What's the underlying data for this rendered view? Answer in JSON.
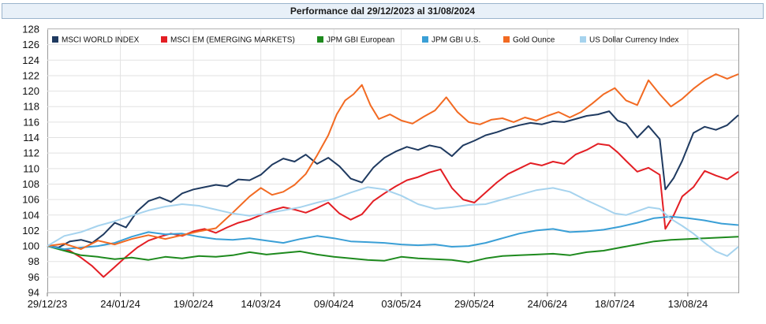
{
  "chart_data": {
    "type": "line",
    "title": "Performance dal 29/12/2023 al 31/08/2024",
    "ylim": [
      94,
      128
    ],
    "y_ticks": [
      94,
      96,
      98,
      100,
      102,
      104,
      106,
      108,
      110,
      112,
      114,
      116,
      118,
      120,
      122,
      124,
      126,
      128
    ],
    "x_tick_labels": [
      "29/12/23",
      "24/01/24",
      "19/02/24",
      "14/03/24",
      "09/04/24",
      "03/05/24",
      "29/05/24",
      "24/06/24",
      "18/07/24",
      "13/08/24"
    ],
    "x_range_days": [
      0,
      246
    ],
    "x_tick_days": [
      0,
      26,
      52,
      76,
      102,
      126,
      152,
      178,
      202,
      228
    ],
    "series": [
      {
        "name": "MSCI WORLD INDEX",
        "color": "#1f3a60",
        "x": [
          0,
          4,
          8,
          12,
          16,
          20,
          24,
          28,
          32,
          36,
          40,
          44,
          48,
          52,
          56,
          60,
          64,
          68,
          72,
          76,
          80,
          84,
          88,
          92,
          96,
          100,
          104,
          108,
          112,
          116,
          120,
          124,
          128,
          132,
          136,
          140,
          144,
          148,
          152,
          156,
          160,
          164,
          168,
          172,
          176,
          180,
          184,
          188,
          192,
          196,
          200,
          203,
          206,
          210,
          214,
          218,
          220,
          223,
          226,
          230,
          234,
          238,
          242,
          246
        ],
        "values": [
          100,
          99.8,
          100.6,
          100.8,
          100.4,
          101.5,
          103.0,
          102.4,
          104.5,
          105.8,
          106.3,
          105.7,
          106.8,
          107.3,
          107.6,
          107.9,
          107.7,
          108.6,
          108.5,
          109.2,
          110.5,
          111.3,
          110.9,
          111.8,
          110.6,
          111.4,
          110.3,
          108.7,
          108.2,
          110.1,
          111.4,
          112.2,
          112.8,
          112.4,
          113.0,
          112.7,
          111.6,
          113.0,
          113.6,
          114.3,
          114.7,
          115.2,
          115.6,
          115.9,
          115.7,
          116.1,
          116.0,
          116.4,
          116.8,
          117.0,
          117.4,
          116.2,
          115.8,
          114.0,
          115.5,
          113.8,
          107.3,
          108.8,
          111.0,
          114.6,
          115.4,
          115.0,
          115.6,
          116.9
        ]
      },
      {
        "name": "MSCI EM (EMERGING MARKETS)",
        "color": "#e31e24",
        "x": [
          0,
          4,
          8,
          12,
          16,
          20,
          24,
          28,
          32,
          36,
          40,
          44,
          48,
          52,
          56,
          60,
          64,
          68,
          72,
          76,
          80,
          84,
          88,
          92,
          96,
          100,
          104,
          108,
          112,
          116,
          120,
          124,
          128,
          132,
          136,
          140,
          144,
          148,
          152,
          156,
          160,
          164,
          168,
          172,
          176,
          180,
          184,
          188,
          192,
          196,
          200,
          203,
          206,
          210,
          214,
          218,
          220,
          223,
          226,
          230,
          234,
          238,
          242,
          246
        ],
        "values": [
          100,
          99.7,
          99.4,
          98.5,
          97.4,
          96.0,
          97.3,
          98.6,
          99.8,
          100.7,
          101.2,
          101.6,
          101.3,
          101.9,
          102.2,
          101.7,
          102.4,
          103.0,
          103.4,
          104.0,
          104.6,
          105.0,
          104.7,
          104.3,
          104.9,
          105.6,
          104.2,
          103.4,
          104.1,
          105.8,
          106.8,
          107.7,
          108.5,
          108.9,
          109.5,
          109.9,
          107.5,
          106.0,
          105.6,
          106.9,
          108.2,
          109.3,
          110.0,
          110.7,
          110.4,
          110.9,
          110.6,
          111.8,
          112.4,
          113.2,
          113.0,
          112.1,
          111.0,
          109.6,
          110.1,
          109.2,
          102.2,
          104.0,
          106.4,
          107.6,
          109.7,
          109.1,
          108.6,
          109.6
        ]
      },
      {
        "name": "JPM GBI European",
        "color": "#1e8a1e",
        "x": [
          0,
          6,
          12,
          18,
          24,
          30,
          36,
          42,
          48,
          54,
          60,
          66,
          72,
          78,
          84,
          90,
          96,
          102,
          108,
          114,
          120,
          126,
          132,
          138,
          144,
          150,
          156,
          162,
          168,
          174,
          180,
          186,
          192,
          198,
          204,
          210,
          216,
          222,
          228,
          234,
          240,
          246
        ],
        "values": [
          100,
          99.4,
          98.8,
          98.6,
          98.3,
          98.5,
          98.2,
          98.6,
          98.4,
          98.7,
          98.6,
          98.8,
          99.2,
          98.9,
          99.1,
          99.3,
          98.9,
          98.6,
          98.4,
          98.2,
          98.1,
          98.6,
          98.4,
          98.3,
          98.2,
          97.9,
          98.4,
          98.7,
          98.8,
          98.9,
          99.0,
          98.8,
          99.2,
          99.4,
          99.8,
          100.2,
          100.6,
          100.8,
          100.9,
          101.0,
          101.1,
          101.2
        ]
      },
      {
        "name": "JPM GBI U.S.",
        "color": "#3a9fd6",
        "x": [
          0,
          6,
          12,
          18,
          24,
          30,
          36,
          42,
          48,
          54,
          60,
          66,
          72,
          78,
          84,
          90,
          96,
          102,
          108,
          114,
          120,
          126,
          132,
          138,
          144,
          150,
          156,
          162,
          168,
          174,
          180,
          186,
          192,
          198,
          204,
          210,
          216,
          222,
          228,
          234,
          240,
          246
        ],
        "values": [
          100,
          99.6,
          99.8,
          100.0,
          100.4,
          101.2,
          101.8,
          101.5,
          101.6,
          101.2,
          100.9,
          100.8,
          101.0,
          100.7,
          100.4,
          100.9,
          101.3,
          101.0,
          100.6,
          100.5,
          100.4,
          100.2,
          100.1,
          100.2,
          99.9,
          100.0,
          100.4,
          101.0,
          101.6,
          102.0,
          102.2,
          101.8,
          101.9,
          102.1,
          102.5,
          103.0,
          103.6,
          103.8,
          103.6,
          103.3,
          102.9,
          102.7
        ]
      },
      {
        "name": "Gold Ounce",
        "color": "#f26a22",
        "x": [
          0,
          6,
          12,
          18,
          24,
          30,
          36,
          42,
          48,
          54,
          60,
          66,
          72,
          76,
          80,
          84,
          88,
          92,
          96,
          100,
          103,
          106,
          109,
          112,
          115,
          118,
          122,
          126,
          130,
          134,
          138,
          142,
          146,
          150,
          154,
          158,
          162,
          166,
          170,
          174,
          178,
          182,
          186,
          190,
          194,
          198,
          202,
          206,
          210,
          214,
          218,
          222,
          226,
          230,
          234,
          238,
          242,
          246
        ],
        "values": [
          100,
          100.3,
          99.6,
          100.7,
          100.2,
          100.9,
          101.4,
          100.9,
          101.4,
          101.9,
          102.3,
          104.3,
          106.4,
          107.5,
          106.6,
          107.0,
          107.9,
          109.3,
          111.7,
          114.3,
          117.0,
          118.8,
          119.6,
          120.8,
          118.2,
          116.4,
          117.0,
          116.2,
          115.8,
          116.7,
          117.5,
          119.2,
          117.3,
          116.0,
          115.7,
          116.3,
          116.5,
          116.0,
          116.6,
          116.2,
          116.8,
          117.3,
          116.6,
          117.3,
          118.4,
          119.6,
          120.4,
          118.8,
          118.2,
          121.4,
          119.6,
          118.0,
          119.0,
          120.3,
          121.4,
          122.2,
          121.6,
          122.2
        ]
      },
      {
        "name": "US Dollar Currency Index",
        "color": "#a6d3ee",
        "x": [
          0,
          6,
          12,
          18,
          24,
          30,
          36,
          42,
          48,
          54,
          60,
          66,
          72,
          78,
          84,
          90,
          96,
          102,
          108,
          114,
          120,
          126,
          132,
          138,
          144,
          150,
          156,
          162,
          168,
          174,
          180,
          186,
          192,
          198,
          202,
          206,
          210,
          214,
          218,
          222,
          226,
          230,
          234,
          238,
          242,
          246
        ],
        "values": [
          100,
          101.3,
          101.8,
          102.6,
          103.2,
          103.9,
          104.6,
          105.1,
          105.4,
          105.2,
          104.7,
          104.2,
          103.9,
          104.2,
          104.6,
          105.0,
          105.6,
          106.1,
          106.9,
          107.6,
          107.3,
          106.5,
          105.4,
          104.8,
          105.0,
          105.3,
          105.4,
          106.0,
          106.6,
          107.2,
          107.5,
          107.0,
          105.9,
          104.9,
          104.2,
          104.0,
          104.5,
          105.0,
          104.8,
          103.5,
          102.6,
          101.6,
          100.4,
          99.3,
          98.7,
          99.9
        ]
      }
    ]
  }
}
